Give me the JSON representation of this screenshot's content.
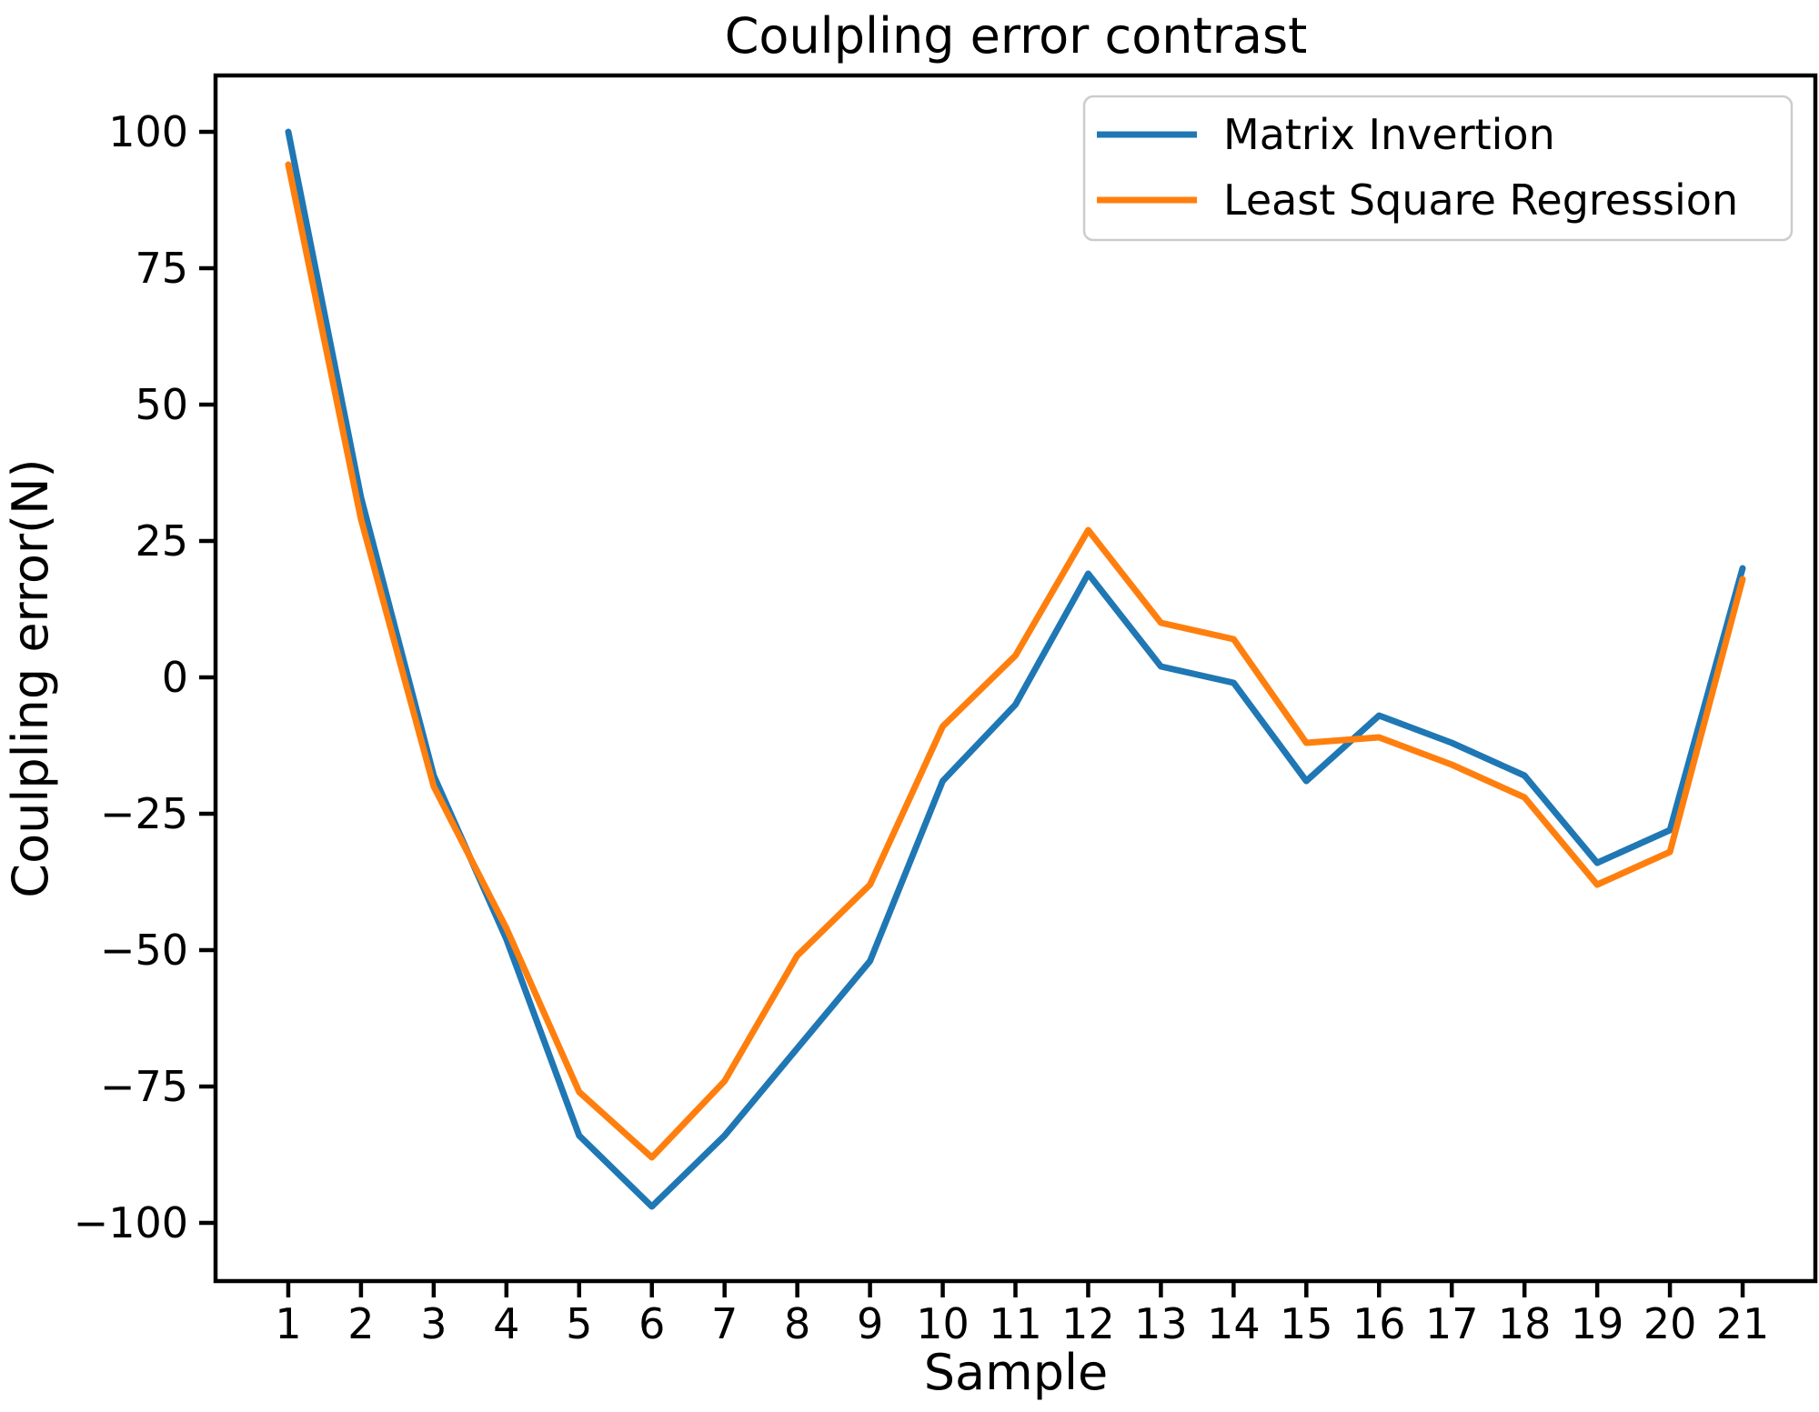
{
  "figure": {
    "background": "#ffffff",
    "axes_color": "#000000"
  },
  "chart_data": {
    "type": "line",
    "title": "Coulpling error contrast",
    "xlabel": "Sample",
    "ylabel": "Coulpling error(N)",
    "grid": false,
    "x": [
      1,
      2,
      3,
      4,
      5,
      6,
      7,
      8,
      9,
      10,
      11,
      12,
      13,
      14,
      15,
      16,
      17,
      18,
      19,
      20,
      21
    ],
    "series": [
      {
        "name": "Matrix Invertion",
        "color": "#1f77b4",
        "values": [
          100,
          33,
          -18,
          -48,
          -84,
          -97,
          -84,
          -68,
          -52,
          -19,
          -5,
          19,
          2,
          -1,
          -19,
          -7,
          -12,
          -18,
          -34,
          -28,
          20
        ]
      },
      {
        "name": "Least Square Regression",
        "color": "#ff7f0e",
        "values": [
          94,
          29,
          -20,
          -46,
          -76,
          -88,
          -74,
          -51,
          -38,
          -9,
          4,
          27,
          10,
          7,
          -12,
          -11,
          -16,
          -22,
          -38,
          -32,
          18
        ]
      }
    ],
    "xlim": [
      0,
      22
    ],
    "ylim": [
      -110.67,
      110.33
    ],
    "xticks": {
      "values": [
        1,
        2,
        3,
        4,
        5,
        6,
        7,
        8,
        9,
        10,
        11,
        12,
        13,
        14,
        15,
        16,
        17,
        18,
        19,
        20,
        21
      ],
      "labels": [
        "1",
        "2",
        "3",
        "4",
        "5",
        "6",
        "7",
        "8",
        "9",
        "10",
        "11",
        "12",
        "13",
        "14",
        "15",
        "16",
        "17",
        "18",
        "19",
        "20",
        "21"
      ]
    },
    "yticks": {
      "values": [
        100,
        75,
        50,
        25,
        0,
        -25,
        -50,
        -75,
        -100
      ],
      "labels": [
        "100",
        "75",
        "50",
        "25",
        "0",
        "−25",
        "−50",
        "−75",
        "−100"
      ]
    },
    "legend": {
      "position": "upper right",
      "items": [
        "Matrix Invertion",
        "Least Square Regression"
      ]
    }
  }
}
